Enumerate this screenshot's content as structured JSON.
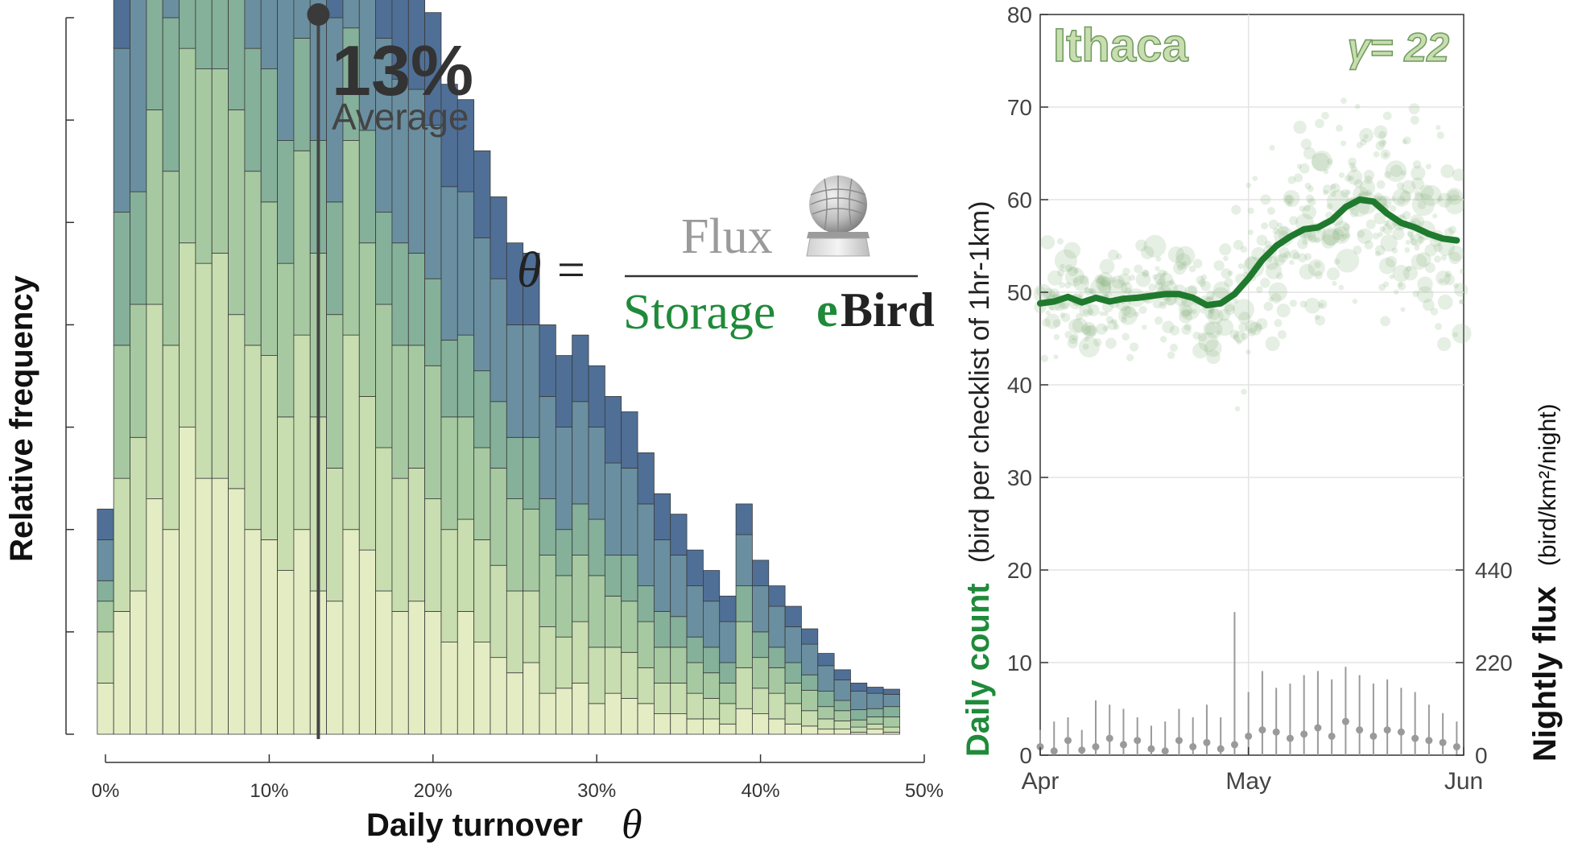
{
  "chart_data": [
    {
      "type": "bar",
      "xlabel": "Daily turnover",
      "xlabel_symbol": "θ",
      "ylabel": "Relative frequency",
      "x_ticks": [
        "0%",
        "10%",
        "20%",
        "30%",
        "40%",
        "50%"
      ],
      "xlim": [
        0,
        50
      ],
      "ylim": [
        0,
        7
      ],
      "bin_width_pct": 1,
      "bins": [
        -0.5,
        0.5,
        1.5,
        2.5,
        3.5,
        4.5,
        5.5,
        6.5,
        7.5,
        8.5,
        9.5,
        10.5,
        11.5,
        12.5,
        13.5,
        14.5,
        15.5,
        16.5,
        17.5,
        18.5,
        19.5,
        20.5,
        21.5,
        22.5,
        23.5,
        24.5,
        25.5,
        26.5,
        27.5,
        28.5,
        29.5,
        30.5,
        31.5,
        32.5,
        33.5,
        34.5,
        35.5,
        36.5,
        37.5,
        38.5,
        39.5,
        40.5,
        41.5,
        42.5,
        43.5,
        44.5,
        45.5,
        46.5,
        47.5,
        48.5
      ],
      "series": [
        {
          "values": [
            0.5,
            1.2,
            1.4,
            2.3,
            2.0,
            3.0,
            2.5,
            2.5,
            2.4,
            2.0,
            1.9,
            1.6,
            2.0,
            1.4,
            1.3,
            2.0,
            1.8,
            1.4,
            1.2,
            1.3,
            1.2,
            0.9,
            1.2,
            0.9,
            0.75,
            0.6,
            0.7,
            0.4,
            0.45,
            0.5,
            0.3,
            0.4,
            0.35,
            0.3,
            0.2,
            0.2,
            0.15,
            0.15,
            0.1,
            0.25,
            0.2,
            0.15,
            0.1,
            0.08,
            0.05,
            0.05,
            0.02,
            0.05,
            0.02,
            0.0
          ]
        },
        {
          "values": [
            0.5,
            1.3,
            1.5,
            1.9,
            1.8,
            1.8,
            2.1,
            2.2,
            1.7,
            1.8,
            1.8,
            1.5,
            1.9,
            1.7,
            1.3,
            1.9,
            1.5,
            1.4,
            1.3,
            1.3,
            1.1,
            1.1,
            0.9,
            1.0,
            0.9,
            0.8,
            0.7,
            0.65,
            0.5,
            0.6,
            0.55,
            0.45,
            0.45,
            0.35,
            0.3,
            0.3,
            0.25,
            0.2,
            0.2,
            0.4,
            0.25,
            0.25,
            0.2,
            0.15,
            0.1,
            0.08,
            0.05,
            0.05,
            0.05,
            0.0
          ]
        },
        {
          "values": [
            0.3,
            1.3,
            1.3,
            1.9,
            1.7,
            1.9,
            1.9,
            1.8,
            2.0,
            1.7,
            1.5,
            1.5,
            1.8,
            1.6,
            1.5,
            1.9,
            1.5,
            1.4,
            1.3,
            1.2,
            1.3,
            1.1,
            1.0,
            0.9,
            0.95,
            0.9,
            0.8,
            0.7,
            0.6,
            0.65,
            0.7,
            0.5,
            0.5,
            0.45,
            0.35,
            0.35,
            0.3,
            0.25,
            0.2,
            0.45,
            0.3,
            0.25,
            0.2,
            0.2,
            0.12,
            0.1,
            0.07,
            0.07,
            0.1,
            0.0
          ]
        },
        {
          "values": [
            0.2,
            1.3,
            1.1,
            1.3,
            1.5,
            1.5,
            1.4,
            1.5,
            1.5,
            1.2,
            1.3,
            1.2,
            1.1,
            1.1,
            1.1,
            1.1,
            1.1,
            0.9,
            1.0,
            0.9,
            0.85,
            0.75,
            0.8,
            0.75,
            0.65,
            0.6,
            0.7,
            0.55,
            0.45,
            0.5,
            0.55,
            0.4,
            0.45,
            0.35,
            0.35,
            0.3,
            0.25,
            0.25,
            0.2,
            0.35,
            0.25,
            0.2,
            0.2,
            0.15,
            0.15,
            0.1,
            0.1,
            0.08,
            0.1,
            0.0
          ]
        },
        {
          "values": [
            0.4,
            1.6,
            2.4,
            2.3,
            2.5,
            2.4,
            2.4,
            2.6,
            2.4,
            2.2,
            2.1,
            1.9,
            1.9,
            2.0,
            1.8,
            1.8,
            1.8,
            1.7,
            1.6,
            1.6,
            1.5,
            1.5,
            1.4,
            1.3,
            1.2,
            1.1,
            1.1,
            1.0,
            1.0,
            1.0,
            0.9,
            0.9,
            0.85,
            0.8,
            0.7,
            0.6,
            0.5,
            0.45,
            0.4,
            0.5,
            0.45,
            0.4,
            0.35,
            0.3,
            0.25,
            0.2,
            0.18,
            0.15,
            0.12,
            0.0
          ]
        },
        {
          "values": [
            0.3,
            0.7,
            1.5,
            1.7,
            1.9,
            2.1,
            2.0,
            2.4,
            2.2,
            2.1,
            1.9,
            1.9,
            1.7,
            1.5,
            1.3,
            1.4,
            1.4,
            1.4,
            1.3,
            1.2,
            1.1,
            1.0,
            0.9,
            0.85,
            0.8,
            0.8,
            0.7,
            0.7,
            0.7,
            0.65,
            0.6,
            0.65,
            0.55,
            0.5,
            0.45,
            0.4,
            0.35,
            0.3,
            0.25,
            0.3,
            0.25,
            0.2,
            0.2,
            0.15,
            0.12,
            0.1,
            0.08,
            0.06,
            0.05,
            0.0
          ]
        }
      ],
      "series_colors": [
        "#e4ecc4",
        "#c8ddb0",
        "#a6c9a2",
        "#85b09a",
        "#6a8fa0",
        "#4f6f96"
      ],
      "mean_line": {
        "x": 13,
        "value_label": "13%",
        "label": "Average"
      },
      "formula": {
        "lhs": "θ =",
        "numerator": "Flux",
        "denominator": "Storage",
        "logo_e": "e",
        "logo_bird": "Bird"
      }
    },
    {
      "type": "scatter",
      "title": "Ithaca",
      "gamma_label": "γ= 22",
      "xlabel": "",
      "x_ticks": [
        "Apr",
        "May",
        "Jun"
      ],
      "xlim": [
        "Apr 1",
        "Jun 1"
      ],
      "ylabel_left_bold": "Daily count",
      "ylabel_left_units": "(bird per checklist of 1hr-1km)",
      "y_left_ticks": [
        "0",
        "10",
        "20",
        "30",
        "40",
        "50",
        "60",
        "70",
        "80"
      ],
      "ylim_left": [
        0,
        80
      ],
      "ylabel_right_bold": "Nightly flux",
      "ylabel_right_units": "(bird/km²/night)",
      "y_right_ticks": [
        "0",
        "220",
        "440"
      ],
      "ylim_right": [
        0,
        1760
      ],
      "grid": true,
      "line_color": "#1f7a2e",
      "scatter_color": "#8fb486",
      "flux_color": "#9a9a9a",
      "daily_count": {
        "x": [
          "Apr 1",
          "Apr 3",
          "Apr 5",
          "Apr 7",
          "Apr 9",
          "Apr 11",
          "Apr 13",
          "Apr 15",
          "Apr 17",
          "Apr 19",
          "Apr 21",
          "Apr 23",
          "Apr 25",
          "Apr 27",
          "Apr 29",
          "May 1",
          "May 3",
          "May 5",
          "May 7",
          "May 9",
          "May 11",
          "May 13",
          "May 15",
          "May 17",
          "May 19",
          "May 21",
          "May 23",
          "May 25",
          "May 27",
          "May 29",
          "May 31"
        ],
        "values": [
          48.8,
          49.0,
          49.5,
          48.9,
          49.4,
          49.0,
          49.3,
          49.4,
          49.6,
          49.8,
          49.8,
          49.4,
          48.6,
          48.8,
          49.8,
          51.5,
          53.5,
          55.0,
          56.0,
          56.8,
          57.0,
          57.8,
          59.2,
          60.0,
          59.8,
          58.5,
          57.5,
          57.0,
          56.3,
          55.8,
          55.6
        ]
      },
      "nightly_flux": {
        "x": [
          "Apr 1",
          "Apr 3",
          "Apr 5",
          "Apr 7",
          "Apr 9",
          "Apr 11",
          "Apr 13",
          "Apr 15",
          "Apr 17",
          "Apr 19",
          "Apr 21",
          "Apr 23",
          "Apr 25",
          "Apr 27",
          "Apr 29",
          "May 1",
          "May 3",
          "May 5",
          "May 7",
          "May 9",
          "May 11",
          "May 13",
          "May 15",
          "May 17",
          "May 19",
          "May 21",
          "May 23",
          "May 25",
          "May 27",
          "May 29",
          "May 31"
        ],
        "values": [
          20,
          10,
          35,
          12,
          20,
          40,
          25,
          35,
          15,
          10,
          35,
          20,
          30,
          15,
          25,
          45,
          60,
          55,
          40,
          50,
          65,
          45,
          80,
          60,
          45,
          60,
          55,
          40,
          35,
          30,
          20
        ],
        "upper": [
          60,
          80,
          90,
          60,
          130,
          120,
          110,
          90,
          70,
          80,
          110,
          90,
          120,
          90,
          340,
          150,
          200,
          160,
          170,
          190,
          200,
          180,
          210,
          190,
          170,
          180,
          160,
          150,
          120,
          100,
          80
        ]
      }
    }
  ]
}
